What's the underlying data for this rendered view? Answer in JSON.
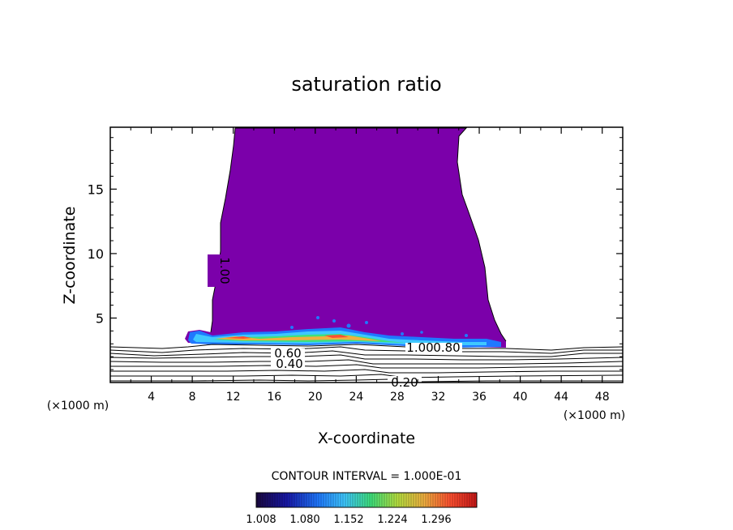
{
  "chart_data": {
    "type": "contour",
    "title": "saturation ratio",
    "xlabel": "X-coordinate",
    "ylabel": "Z-coordinate",
    "x_unit_left": "(×1000 m)",
    "x_unit_right": "(×1000 m)",
    "xlim": [
      0,
      50
    ],
    "ylim": [
      0,
      19.8
    ],
    "x_ticks": [
      4,
      8,
      12,
      16,
      20,
      24,
      28,
      32,
      36,
      40,
      44,
      48
    ],
    "y_ticks": [
      5,
      10,
      15
    ],
    "contour_interval_text": "CONTOUR INTERVAL = 1.000E-01",
    "contour_labels": [
      {
        "text": "1.00",
        "x": 10.2,
        "z": 8.8,
        "rotate": -90
      },
      {
        "text": "0.60",
        "x": 17.5,
        "z": 2.3
      },
      {
        "text": "0.40",
        "x": 17.5,
        "z": 1.5
      },
      {
        "text": "1.00",
        "x": 30.8,
        "z": 2.6
      },
      {
        "text": "0.80",
        "x": 32.8,
        "z": 2.6
      },
      {
        "text": "0.20",
        "x": 29.0,
        "z": 0.1
      }
    ],
    "colorbar": {
      "ticks": [
        "1.008",
        "1.080",
        "1.152",
        "1.224",
        "1.296"
      ],
      "colors": [
        "#1a0840",
        "#1818a8",
        "#1f78ff",
        "#3fc8ff",
        "#3ee07c",
        "#b6e040",
        "#f0b040",
        "#ff5030",
        "#c81818"
      ]
    },
    "fill_color": "#7b00aa"
  }
}
